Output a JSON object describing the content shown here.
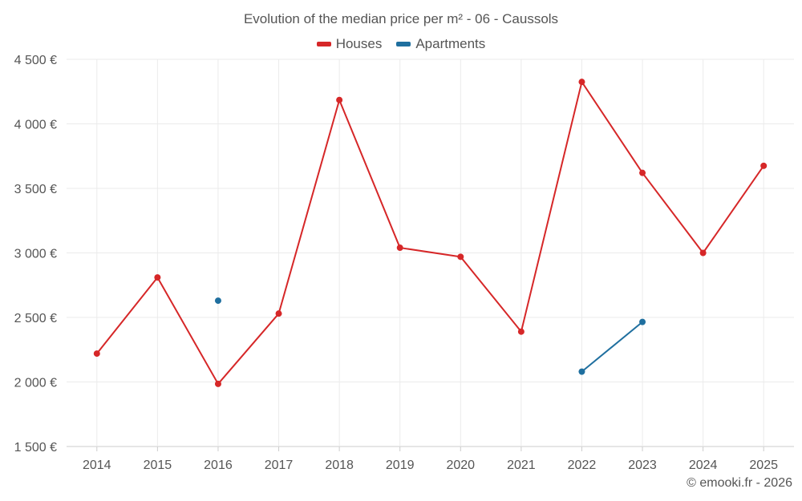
{
  "chart_data": {
    "type": "line",
    "title": "Evolution of the median price per m² - 06 - Caussols",
    "categories": [
      "2014",
      "2015",
      "2016",
      "2017",
      "2018",
      "2019",
      "2020",
      "2021",
      "2022",
      "2023",
      "2024",
      "2025"
    ],
    "series": [
      {
        "name": "Houses",
        "color": "#d62728",
        "values": [
          2220,
          2810,
          1985,
          2530,
          4185,
          3040,
          2970,
          2390,
          4325,
          3620,
          3000,
          3675
        ]
      },
      {
        "name": "Apartments",
        "color": "#1f6f9f",
        "values": [
          null,
          null,
          2630,
          null,
          null,
          null,
          null,
          null,
          2080,
          2465,
          null,
          null
        ]
      }
    ],
    "ylim": [
      1500,
      4500
    ],
    "yticks": [
      1500,
      2000,
      2500,
      3000,
      3500,
      4000,
      4500
    ],
    "ytick_labels": [
      "1 500 €",
      "2 000 €",
      "2 500 €",
      "3 000 €",
      "3 500 €",
      "4 000 €",
      "4 500 €"
    ],
    "xlabel": "",
    "ylabel": "",
    "grid": true,
    "legend_position": "top"
  },
  "credit": "© emooki.fr - 2026"
}
